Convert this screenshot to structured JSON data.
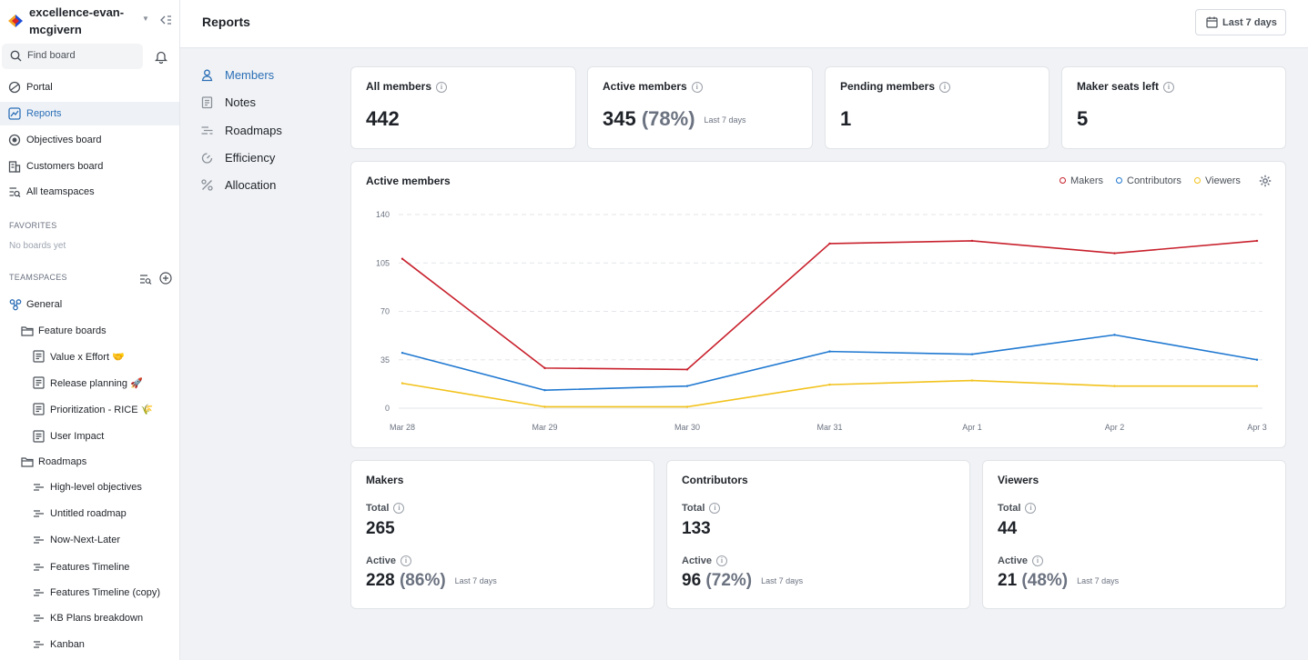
{
  "workspace": {
    "name": "excellence-evan-mcgivern"
  },
  "search": {
    "placeholder": "Find board"
  },
  "nav": [
    {
      "label": "Portal",
      "icon": "portal-icon"
    },
    {
      "label": "Reports",
      "icon": "reports-icon",
      "active": true
    },
    {
      "label": "Objectives board",
      "icon": "objectives-icon"
    },
    {
      "label": "Customers board",
      "icon": "customers-icon"
    },
    {
      "label": "All teamspaces",
      "icon": "teamspaces-icon"
    }
  ],
  "favorites": {
    "heading": "FAVORITES",
    "empty": "No boards yet"
  },
  "teamspaces": {
    "heading": "TEAMSPACES",
    "general": "General",
    "feature_boards": "Feature boards",
    "boards": [
      "Value x Effort 🤝",
      "Release planning 🚀",
      "Prioritization - RICE 🌾",
      "User Impact"
    ],
    "roadmaps_folder": "Roadmaps",
    "roadmaps": [
      "High-level objectives",
      "Untitled roadmap",
      "Now-Next-Later",
      "Features Timeline",
      "Features Timeline (copy)",
      "KB Plans breakdown",
      "Kanban"
    ]
  },
  "header": {
    "title": "Reports",
    "date_range": "Last 7 days"
  },
  "subnav": [
    {
      "label": "Members",
      "active": true
    },
    {
      "label": "Notes"
    },
    {
      "label": "Roadmaps"
    },
    {
      "label": "Efficiency"
    },
    {
      "label": "Allocation"
    }
  ],
  "stats": [
    {
      "title": "All members",
      "value": "442"
    },
    {
      "title": "Active members",
      "value": "345",
      "pct": "(78%)",
      "note": "Last 7 days"
    },
    {
      "title": "Pending members",
      "value": "1"
    },
    {
      "title": "Maker seats left",
      "value": "5"
    }
  ],
  "chart_data": {
    "type": "line",
    "title": "Active members",
    "x": [
      "Mar 28",
      "Mar 29",
      "Mar 30",
      "Mar 31",
      "Apr 1",
      "Apr 2",
      "Apr 3"
    ],
    "yticks": [
      0,
      35,
      70,
      105,
      140
    ],
    "ylim": [
      0,
      140
    ],
    "grid": true,
    "legend_position": "top-right",
    "series": [
      {
        "name": "Makers",
        "color": "#c8202c",
        "values": [
          108,
          29,
          28,
          119,
          121,
          112,
          121
        ]
      },
      {
        "name": "Contributors",
        "color": "#1f78d1",
        "values": [
          40,
          13,
          16,
          41,
          39,
          53,
          35
        ]
      },
      {
        "name": "Viewers",
        "color": "#f2c21b",
        "values": [
          18,
          1,
          1,
          17,
          20,
          16,
          16
        ]
      }
    ]
  },
  "breakdown": [
    {
      "title": "Makers",
      "total_label": "Total",
      "total": "265",
      "active_label": "Active",
      "active": "228",
      "pct": "(86%)",
      "note": "Last 7 days"
    },
    {
      "title": "Contributors",
      "total_label": "Total",
      "total": "133",
      "active_label": "Active",
      "active": "96",
      "pct": "(72%)",
      "note": "Last 7 days"
    },
    {
      "title": "Viewers",
      "total_label": "Total",
      "total": "44",
      "active_label": "Active",
      "active": "21",
      "pct": "(48%)",
      "note": "Last 7 days"
    }
  ]
}
